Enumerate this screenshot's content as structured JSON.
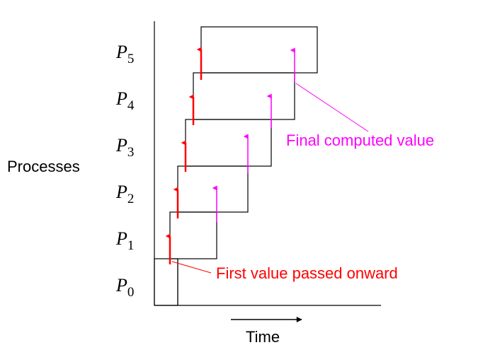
{
  "diagram": {
    "y_axis_label": "Processes",
    "x_axis_label": "Time",
    "processes": [
      {
        "letter": "P",
        "index": "0"
      },
      {
        "letter": "P",
        "index": "1"
      },
      {
        "letter": "P",
        "index": "2"
      },
      {
        "letter": "P",
        "index": "3"
      },
      {
        "letter": "P",
        "index": "4"
      },
      {
        "letter": "P",
        "index": "5"
      }
    ],
    "annotations": {
      "final_value": "Final computed value",
      "first_value": "First value passed onward"
    },
    "colors": {
      "line": "#000000",
      "passed_arrow": "#ff0000",
      "final_arrow": "#ff00ff"
    }
  }
}
